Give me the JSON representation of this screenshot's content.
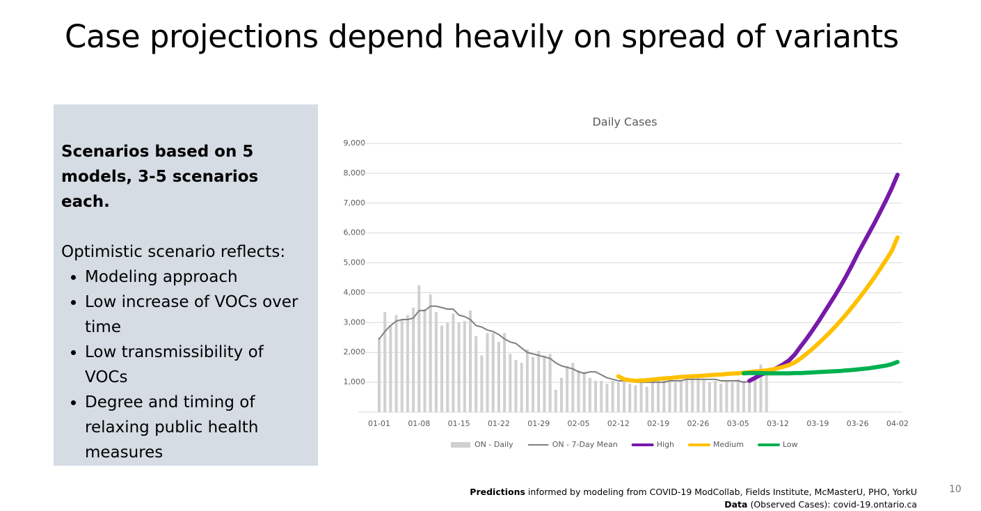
{
  "slide_title": "Case projections depend heavily on spread of variants",
  "panel": {
    "heading": "Scenarios based on 5 models, 3-5 scenarios each.",
    "intro": "Optimistic scenario reflects:",
    "bullets": [
      "Modeling approach",
      "Low increase of VOCs over time",
      "Low transmissibility of VOCs",
      "Degree and timing of relaxing public health measures"
    ]
  },
  "chart_data": {
    "type": "bar",
    "title": "Daily Cases",
    "categories": [
      "01-01",
      null,
      null,
      null,
      null,
      null,
      null,
      "01-08",
      null,
      null,
      null,
      null,
      null,
      null,
      "01-15",
      null,
      null,
      null,
      null,
      null,
      null,
      "01-22",
      null,
      null,
      null,
      null,
      null,
      null,
      "01-29",
      null,
      null,
      null,
      null,
      null,
      null,
      "02-05",
      null,
      null,
      null,
      null,
      null,
      null,
      "02-12",
      null,
      null,
      null,
      null,
      null,
      null,
      "02-19",
      null,
      null,
      null,
      null,
      null,
      null,
      "02-26",
      null,
      null,
      null,
      null,
      null,
      null,
      "03-05",
      null,
      null,
      null,
      null,
      null,
      null,
      "03-12",
      null,
      null,
      null,
      null,
      null,
      null,
      "03-19",
      null,
      null,
      null,
      null,
      null,
      null,
      "03-26",
      null,
      null,
      null,
      null,
      null,
      null,
      "04-02"
    ],
    "series": [
      {
        "name": "ON - Daily",
        "type": "bar",
        "color": "#d0d0d0",
        "values": [
          2500,
          3350,
          2900,
          3250,
          3100,
          3250,
          3500,
          4250,
          3450,
          3950,
          3350,
          2900,
          3000,
          3300,
          3000,
          3050,
          3400,
          2550,
          1900,
          2650,
          2650,
          2350,
          2650,
          1950,
          1750,
          1650,
          2100,
          1850,
          2050,
          1900,
          1950,
          750,
          1150,
          1550,
          1650,
          1400,
          1350,
          1150,
          1050,
          1050,
          950,
          1050,
          1000,
          1100,
          950,
          900,
          1000,
          850,
          1000,
          1050,
          1150,
          1050,
          1000,
          1050,
          1100,
          1150,
          1250,
          1100,
          1000,
          1050,
          950,
          1050,
          1000,
          1100,
          1050,
          1000,
          1100,
          1600,
          1300,
          null,
          null,
          null,
          null,
          null,
          null,
          null,
          null,
          null,
          null,
          null,
          null,
          null,
          null,
          null,
          null,
          null,
          null,
          null,
          null,
          null,
          null,
          null
        ]
      },
      {
        "name": "ON - 7-Day Mean",
        "type": "line",
        "width": 2,
        "color": "#7f7f7f",
        "values": [
          2450,
          2700,
          2900,
          3050,
          3100,
          3100,
          3150,
          3400,
          3400,
          3550,
          3550,
          3500,
          3450,
          3450,
          3250,
          3200,
          3100,
          2900,
          2850,
          2750,
          2700,
          2600,
          2450,
          2350,
          2300,
          2150,
          2000,
          1950,
          1900,
          1850,
          1800,
          1650,
          1550,
          1500,
          1450,
          1350,
          1300,
          1350,
          1350,
          1250,
          1150,
          1100,
          1050,
          1050,
          1050,
          1000,
          1000,
          1000,
          1000,
          1000,
          1000,
          1050,
          1050,
          1050,
          1100,
          1100,
          1100,
          1100,
          1100,
          1100,
          1050,
          1050,
          1050,
          1050,
          1000,
          1030,
          null,
          null,
          null,
          null,
          null,
          null,
          null,
          null,
          null,
          null,
          null,
          null,
          null,
          null,
          null,
          null,
          null,
          null,
          null,
          null,
          null,
          null,
          null,
          null,
          null,
          null
        ]
      },
      {
        "name": "High",
        "type": "line",
        "width": 6,
        "color": "#7719aa",
        "values": [
          null,
          null,
          null,
          null,
          null,
          null,
          null,
          null,
          null,
          null,
          null,
          null,
          null,
          null,
          null,
          null,
          null,
          null,
          null,
          null,
          null,
          null,
          null,
          null,
          null,
          null,
          null,
          null,
          null,
          null,
          null,
          null,
          null,
          null,
          null,
          null,
          null,
          null,
          null,
          null,
          null,
          null,
          null,
          null,
          null,
          null,
          null,
          null,
          null,
          null,
          null,
          null,
          null,
          null,
          null,
          null,
          null,
          null,
          null,
          null,
          null,
          null,
          null,
          null,
          null,
          1050,
          1150,
          1250,
          1330,
          1410,
          1500,
          1610,
          1740,
          1940,
          2200,
          2450,
          2720,
          3000,
          3300,
          3600,
          3900,
          4220,
          4560,
          4920,
          5300,
          5650,
          6000,
          6350,
          6720,
          7100,
          7500,
          7950
        ]
      },
      {
        "name": "Medium",
        "type": "line",
        "width": 6,
        "color": "#ffc000",
        "values": [
          null,
          null,
          null,
          null,
          null,
          null,
          null,
          null,
          null,
          null,
          null,
          null,
          null,
          null,
          null,
          null,
          null,
          null,
          null,
          null,
          null,
          null,
          null,
          null,
          null,
          null,
          null,
          null,
          null,
          null,
          null,
          null,
          null,
          null,
          null,
          null,
          null,
          null,
          null,
          null,
          null,
          null,
          1200,
          1100,
          1070,
          1050,
          1060,
          1070,
          1090,
          1110,
          1130,
          1140,
          1160,
          1180,
          1190,
          1200,
          1210,
          1220,
          1240,
          1250,
          1260,
          1280,
          1290,
          1300,
          1320,
          1340,
          1360,
          1380,
          1400,
          1430,
          1470,
          1520,
          1580,
          1670,
          1800,
          1950,
          2110,
          2280,
          2460,
          2650,
          2850,
          3060,
          3280,
          3510,
          3750,
          4000,
          4260,
          4530,
          4810,
          5100,
          5400,
          5850
        ]
      },
      {
        "name": "Low",
        "type": "line",
        "width": 6,
        "color": "#00b050",
        "values": [
          null,
          null,
          null,
          null,
          null,
          null,
          null,
          null,
          null,
          null,
          null,
          null,
          null,
          null,
          null,
          null,
          null,
          null,
          null,
          null,
          null,
          null,
          null,
          null,
          null,
          null,
          null,
          null,
          null,
          null,
          null,
          null,
          null,
          null,
          null,
          null,
          null,
          null,
          null,
          null,
          null,
          null,
          null,
          null,
          null,
          null,
          null,
          null,
          null,
          null,
          null,
          null,
          null,
          null,
          null,
          null,
          null,
          null,
          null,
          null,
          null,
          null,
          null,
          null,
          1300,
          1310,
          1310,
          1310,
          1300,
          1300,
          1300,
          1300,
          1300,
          1310,
          1310,
          1320,
          1330,
          1340,
          1350,
          1360,
          1370,
          1380,
          1400,
          1410,
          1430,
          1450,
          1470,
          1500,
          1530,
          1560,
          1610,
          1680
        ]
      }
    ],
    "ylim": [
      0,
      9000
    ],
    "yticks": [
      {
        "value": 0,
        "label": "-"
      },
      {
        "value": 1000,
        "label": "1,000"
      },
      {
        "value": 2000,
        "label": "2,000"
      },
      {
        "value": 3000,
        "label": "3,000"
      },
      {
        "value": 4000,
        "label": "4,000"
      },
      {
        "value": 5000,
        "label": "5,000"
      },
      {
        "value": 6000,
        "label": "6,000"
      },
      {
        "value": 7000,
        "label": "7,000"
      },
      {
        "value": 8000,
        "label": "8,000"
      },
      {
        "value": 9000,
        "label": "9,000"
      }
    ],
    "grid": true,
    "legend": "bottom"
  },
  "footer": {
    "line1_bold": "Predictions",
    "line1": "informed by modeling from COVID-19 ModCollab, Fields Institute, McMasterU, PHO, YorkU",
    "line2_bold": "Data",
    "line2": "(Observed Cases): covid-19.ontario.ca"
  },
  "page_number": "10"
}
